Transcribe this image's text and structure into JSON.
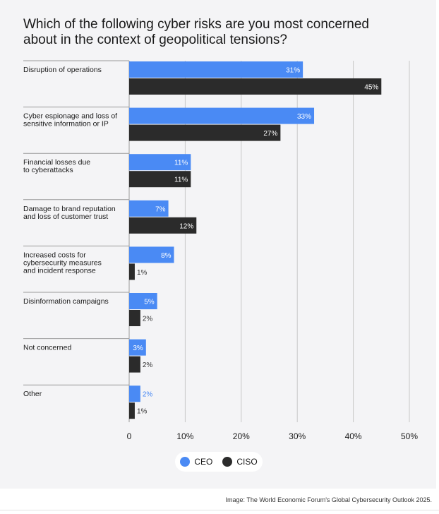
{
  "chart_data": {
    "type": "bar",
    "orientation": "horizontal",
    "title": "Which of the following cyber risks are you most concerned about in the context of geopolitical tensions?",
    "categories": [
      [
        "Disruption of operations"
      ],
      [
        "Cyber espionage and loss of",
        "sensitive information or IP"
      ],
      [
        "Financial losses due",
        "to cyberattacks"
      ],
      [
        "Damage to brand reputation",
        "and loss of customer trust"
      ],
      [
        "Increased costs for",
        "cybersecurity measures",
        "and incident response"
      ],
      [
        "Disinformation campaigns"
      ],
      [
        "Not concerned"
      ],
      [
        "Other"
      ]
    ],
    "series": [
      {
        "name": "CEO",
        "color": "#4a8af4",
        "values": [
          31,
          33,
          11,
          7,
          8,
          5,
          3,
          2
        ]
      },
      {
        "name": "CISO",
        "color": "#2b2b2b",
        "values": [
          45,
          27,
          11,
          12,
          1,
          2,
          2,
          1
        ]
      }
    ],
    "value_suffix": "%",
    "xlim": [
      0,
      50
    ],
    "x_ticks": [
      "0",
      "10%",
      "20%",
      "30%",
      "40%",
      "50%"
    ],
    "grid": true,
    "legend_position": "bottom-center"
  },
  "legend": {
    "ceo": "CEO",
    "ciso": "CISO"
  },
  "caption": "Image: The World Economic Forum's Global Cybersecurity Outlook 2025."
}
